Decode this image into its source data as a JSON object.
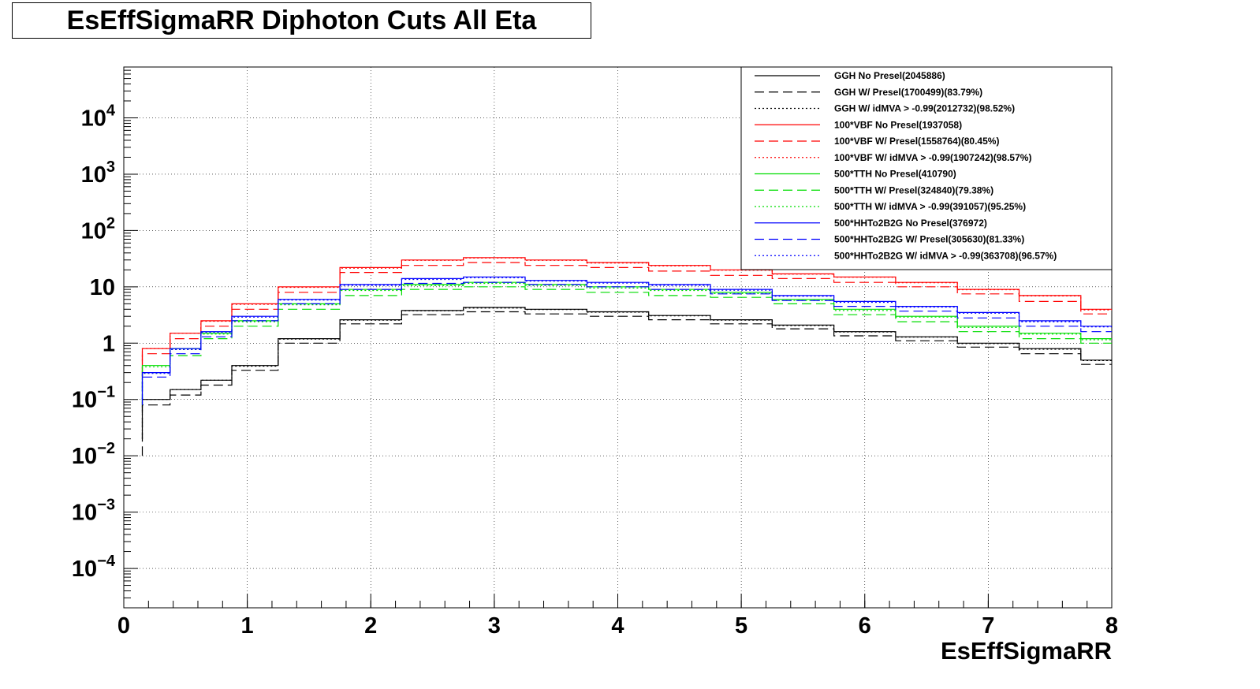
{
  "title": "EsEffSigmaRR Diphoton Cuts All Eta",
  "chart_data": {
    "type": "line",
    "subtype": "step-histogram",
    "title": "EsEffSigmaRR Diphoton Cuts All Eta",
    "xlabel": "EsEffSigmaRR",
    "ylabel": "",
    "xlim": [
      0,
      8
    ],
    "ylim": [
      2e-05,
      80000
    ],
    "yscale": "log",
    "grid": true,
    "legend_position": "top-right",
    "x_ticks": [
      "0",
      "1",
      "2",
      "3",
      "4",
      "5",
      "6",
      "7",
      "8"
    ],
    "y_ticks": [
      {
        "base": "10",
        "exp": "−4",
        "value": 0.0001
      },
      {
        "base": "10",
        "exp": "−3",
        "value": 0.001
      },
      {
        "base": "10",
        "exp": "−2",
        "value": 0.01
      },
      {
        "base": "10",
        "exp": "−1",
        "value": 0.1
      },
      {
        "base": "1",
        "exp": "",
        "value": 1
      },
      {
        "base": "10",
        "exp": "",
        "value": 10
      },
      {
        "base": "10",
        "exp": "2",
        "value": 100
      },
      {
        "base": "10",
        "exp": "3",
        "value": 1000
      },
      {
        "base": "10",
        "exp": "4",
        "value": 10000
      }
    ],
    "x": [
      0.05,
      0.25,
      0.5,
      0.75,
      1.0,
      1.5,
      2.0,
      2.5,
      3.0,
      3.5,
      4.0,
      4.5,
      5.0,
      5.5,
      6.0,
      6.5,
      7.0,
      7.5,
      8.0
    ],
    "series": [
      {
        "name": "GGH No Presel(2045886)",
        "color": "#000000",
        "style": "solid",
        "values": [
          0.02,
          0.1,
          0.15,
          0.22,
          0.4,
          1.2,
          2.6,
          3.8,
          4.3,
          4.0,
          3.6,
          3.1,
          2.6,
          2.1,
          1.6,
          1.3,
          1.0,
          0.8,
          0.5
        ]
      },
      {
        "name": "GGH W/ Presel(1700499)(83.79%)",
        "color": "#000000",
        "style": "dashed",
        "values": [
          0.01,
          0.08,
          0.12,
          0.18,
          0.33,
          1.0,
          2.2,
          3.2,
          3.6,
          3.3,
          3.0,
          2.6,
          2.2,
          1.8,
          1.35,
          1.1,
          0.85,
          0.65,
          0.42
        ]
      },
      {
        "name": "GGH W/ idMVA > -0.99(2012732)(98.52%)",
        "color": "#000000",
        "style": "dotted",
        "values": [
          0.02,
          0.1,
          0.15,
          0.22,
          0.39,
          1.18,
          2.55,
          3.75,
          4.2,
          3.95,
          3.55,
          3.05,
          2.55,
          2.05,
          1.58,
          1.28,
          0.98,
          0.78,
          0.49
        ]
      },
      {
        "name": "100*VBF No Presel(1937058)",
        "color": "#ff0000",
        "style": "solid",
        "values": [
          0.3,
          0.8,
          1.5,
          2.5,
          5.0,
          10,
          22,
          30,
          33,
          30,
          27,
          24,
          20,
          17,
          15,
          12,
          9,
          7,
          4
        ]
      },
      {
        "name": "100*VBF W/ Presel(1558764)(80.45%)",
        "color": "#ff0000",
        "style": "dashed",
        "values": [
          0.25,
          0.65,
          1.2,
          2.0,
          4.0,
          8,
          18,
          24,
          27,
          24,
          22,
          19,
          16,
          14,
          12,
          10,
          7.5,
          5.5,
          3.3
        ]
      },
      {
        "name": "100*VBF W/ idMVA > -0.99(1907242)(98.57%)",
        "color": "#ff0000",
        "style": "dotted",
        "values": [
          0.3,
          0.8,
          1.5,
          2.45,
          4.9,
          9.8,
          21.5,
          29.5,
          32.5,
          29.5,
          26.5,
          23.5,
          19.7,
          16.8,
          14.8,
          11.8,
          8.9,
          6.9,
          3.9
        ]
      },
      {
        "name": "500*TTH No Presel(410790)",
        "color": "#00dd00",
        "style": "solid",
        "values": [
          0.1,
          0.4,
          0.8,
          1.5,
          2.5,
          5,
          9,
          11,
          12,
          11,
          10,
          9,
          8,
          6,
          4,
          3,
          2,
          1.5,
          1.2
        ]
      },
      {
        "name": "500*TTH W/ Presel(324840)(79.38%)",
        "color": "#00dd00",
        "style": "dashed",
        "values": [
          0.08,
          0.3,
          0.6,
          1.2,
          2.0,
          4,
          7,
          9,
          10,
          9,
          8,
          7,
          6.5,
          5,
          3.2,
          2.4,
          1.6,
          1.2,
          1.0
        ]
      },
      {
        "name": "500*TTH W/ idMVA > -0.99(391057)(95.25%)",
        "color": "#00dd00",
        "style": "dotted",
        "values": [
          0.1,
          0.38,
          0.77,
          1.45,
          2.4,
          4.8,
          8.6,
          10.5,
          11.5,
          10.5,
          9.5,
          8.6,
          7.6,
          5.7,
          3.8,
          2.9,
          1.9,
          1.45,
          1.15
        ]
      },
      {
        "name": "500*HHTo2B2G No Presel(376972)",
        "color": "#0000ff",
        "style": "solid",
        "values": [
          0.1,
          0.3,
          0.8,
          1.6,
          3.0,
          6,
          11,
          14,
          15,
          13,
          12,
          11,
          9,
          7,
          5.5,
          4.5,
          3.5,
          2.5,
          2
        ]
      },
      {
        "name": "500*HHTo2B2G W/ Presel(305630)(81.33%)",
        "color": "#0000ff",
        "style": "dashed",
        "values": [
          0.08,
          0.25,
          0.65,
          1.3,
          2.5,
          5,
          9,
          11.5,
          12,
          11,
          10,
          9,
          7.5,
          5.7,
          4.5,
          3.7,
          2.8,
          2.0,
          1.6
        ]
      },
      {
        "name": "500*HHTo2B2G W/ idMVA > -0.99(363708)(96.57%)",
        "color": "#0000ff",
        "style": "dotted",
        "values": [
          0.1,
          0.29,
          0.77,
          1.55,
          2.9,
          5.8,
          10.6,
          13.5,
          14.5,
          12.6,
          11.6,
          10.6,
          8.7,
          6.8,
          5.3,
          4.35,
          3.4,
          2.4,
          1.95
        ]
      }
    ]
  }
}
